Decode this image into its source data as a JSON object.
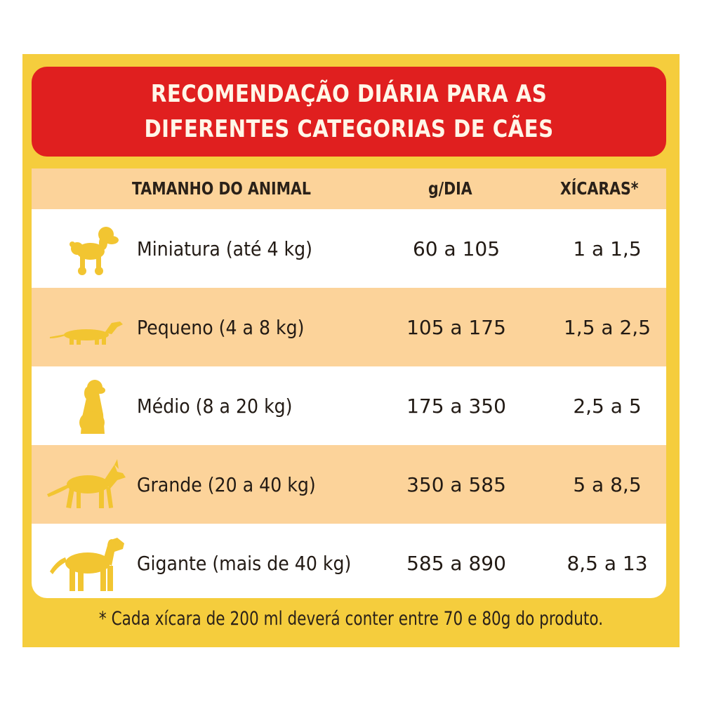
{
  "title": {
    "line1": "RECOMENDAÇÃO DIÁRIA PARA AS",
    "line2": "DIFERENTES CATEGORIAS DE CÃES"
  },
  "headers": {
    "animal": "TAMANHO DO ANIMAL",
    "grams": "g/DIA",
    "cups": "XÍCARAS*"
  },
  "rows": [
    {
      "icon": "poodle-icon",
      "size": "Miniatura (até 4 kg)",
      "grams": "60 a 105",
      "cups": "1 a 1,5"
    },
    {
      "icon": "dachshund-icon",
      "size": "Pequeno (4 a 8 kg)",
      "grams": "105 a 175",
      "cups": "1,5 a 2,5"
    },
    {
      "icon": "sitting-dog-icon",
      "size": "Médio (8 a 20 kg)",
      "grams": "175 a 350",
      "cups": "2,5 a 5"
    },
    {
      "icon": "shepherd-dog-icon",
      "size": "Grande (20 a 40 kg)",
      "grams": "350 a 585",
      "cups": "5 a 8,5"
    },
    {
      "icon": "large-dog-icon",
      "size": "Gigante (mais de 40 kg)",
      "grams": "585 a 890",
      "cups": "8,5 a 13"
    }
  ],
  "footnote": "* Cada xícara de 200 ml deverá conter entre 70 e 80g do produto.",
  "colors": {
    "panel": "#f5cd3d",
    "banner": "#e01f1f",
    "header_row": "#fcd39a",
    "alt_row": "#fcd39a",
    "icons": "#f2c531"
  }
}
